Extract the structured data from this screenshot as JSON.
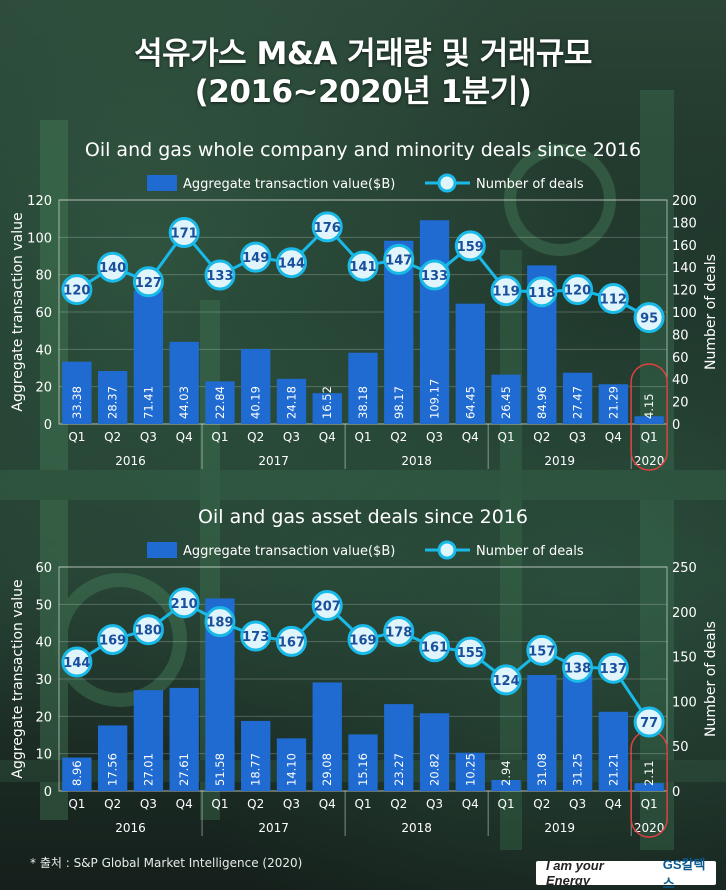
{
  "header": {
    "title_line1": "석유가스 M&A 거래량 및 거래규모",
    "title_line2": "(2016~2020년 1분기)"
  },
  "source": "* 출처 : S&P Global Market Intelligence (2020)",
  "logo": {
    "slogan": "I am your Energy",
    "brand": "GS칼텍스"
  },
  "colors": {
    "bar": "#1f6bd1",
    "line": "#19b9e8",
    "marker_fill": "#dff4fb",
    "label_text": "#1a4f9c",
    "highlight": "#e04040"
  },
  "chart_data": [
    {
      "type": "bar",
      "title": "Oil and gas whole company and minority deals since 2016",
      "legend": [
        "Aggregate transaction value($B)",
        "Number of deals"
      ],
      "categories": [
        "Q1",
        "Q2",
        "Q3",
        "Q4",
        "Q1",
        "Q2",
        "Q3",
        "Q4",
        "Q1",
        "Q2",
        "Q3",
        "Q4",
        "Q1",
        "Q2",
        "Q3",
        "Q4",
        "Q1"
      ],
      "years": [
        "2016",
        "2017",
        "2018",
        "2019",
        "2020"
      ],
      "bar_labels": [
        "33.38",
        "28.37",
        "71.41",
        "44.03",
        "22.84",
        "40.19",
        "24.18",
        "16.52",
        "38.18",
        "98.17",
        "109.17",
        "64.45",
        "26.45",
        "84.96",
        "27.47",
        "21.29",
        "4.15"
      ],
      "series": [
        {
          "name": "Aggregate transaction value($B)",
          "axis": "left",
          "values": [
            33.38,
            28.37,
            71.41,
            44.03,
            22.84,
            40.19,
            24.18,
            16.52,
            38.18,
            98.17,
            109.17,
            64.45,
            26.45,
            84.96,
            27.47,
            21.29,
            4.15
          ]
        },
        {
          "name": "Number of deals",
          "axis": "right",
          "values": [
            120,
            140,
            127,
            171,
            133,
            149,
            144,
            176,
            141,
            147,
            133,
            159,
            119,
            118,
            120,
            112,
            95
          ]
        }
      ],
      "ylabel": "Aggregate transaction value",
      "y2label": "Number of deals",
      "ylim": [
        0,
        120
      ],
      "yticks": [
        0,
        20,
        40,
        60,
        80,
        100,
        120
      ],
      "y2lim": [
        0,
        200
      ],
      "y2ticks": [
        0,
        20,
        40,
        60,
        80,
        100,
        120,
        140,
        160,
        180,
        200
      ]
    },
    {
      "type": "bar",
      "title": "Oil and gas asset deals since 2016",
      "legend": [
        "Aggregate transaction value($B)",
        "Number of deals"
      ],
      "categories": [
        "Q1",
        "Q2",
        "Q3",
        "Q4",
        "Q1",
        "Q2",
        "Q3",
        "Q4",
        "Q1",
        "Q2",
        "Q3",
        "Q4",
        "Q1",
        "Q2",
        "Q3",
        "Q4",
        "Q1"
      ],
      "years": [
        "2016",
        "2017",
        "2018",
        "2019",
        "2020"
      ],
      "bar_labels": [
        "8.96",
        "17.56",
        "27.01",
        "27.61",
        "51.58",
        "18.77",
        "14.10",
        "29.08",
        "15.16",
        "23.27",
        "20.82",
        "10.25",
        "2.94",
        "31.08",
        "31.25",
        "21.21",
        "2.11"
      ],
      "series": [
        {
          "name": "Aggregate transaction value($B)",
          "axis": "left",
          "values": [
            8.96,
            17.56,
            27.01,
            27.61,
            51.58,
            18.77,
            14.1,
            29.08,
            15.16,
            23.27,
            20.82,
            10.25,
            2.94,
            31.08,
            31.25,
            21.21,
            2.11
          ]
        },
        {
          "name": "Number of deals",
          "axis": "right",
          "values": [
            144,
            169,
            180,
            210,
            189,
            173,
            167,
            207,
            169,
            178,
            161,
            155,
            124,
            157,
            138,
            137,
            77
          ]
        }
      ],
      "ylabel": "Aggregate transaction value",
      "y2label": "Number of deals",
      "ylim": [
        0,
        60
      ],
      "yticks": [
        0,
        10,
        20,
        30,
        40,
        50,
        60
      ],
      "y2lim": [
        0,
        250
      ],
      "y2ticks": [
        0,
        50,
        100,
        150,
        200,
        250
      ]
    }
  ]
}
